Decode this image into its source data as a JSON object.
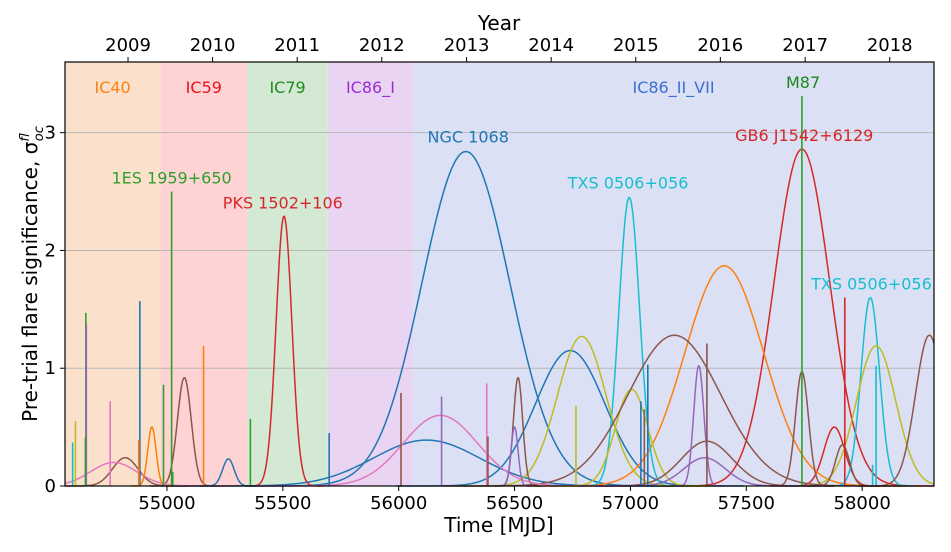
{
  "chart_data": {
    "type": "line",
    "xlabel": "Time [MJD]",
    "ylabel": "Pre-trial flare significance, σ",
    "ylabel_sup": "f",
    "ylabel_sub": "loc",
    "x2label": "Year",
    "xlim": [
      54560,
      58310
    ],
    "ylim": [
      0,
      3.6
    ],
    "grid": "horizontal",
    "xticks": [
      55000,
      55500,
      56000,
      56500,
      57000,
      57500,
      58000
    ],
    "yticks": [
      0,
      1,
      2,
      3
    ],
    "year_ticks": [
      {
        "label": "2009",
        "mjd": 54832
      },
      {
        "label": "2010",
        "mjd": 55197
      },
      {
        "label": "2011",
        "mjd": 55562
      },
      {
        "label": "2012",
        "mjd": 55927
      },
      {
        "label": "2013",
        "mjd": 56293
      },
      {
        "label": "2014",
        "mjd": 56658
      },
      {
        "label": "2015",
        "mjd": 57023
      },
      {
        "label": "2016",
        "mjd": 57388
      },
      {
        "label": "2017",
        "mjd": 57754
      },
      {
        "label": "2018",
        "mjd": 58119
      }
    ],
    "seasons": [
      {
        "name": "IC40",
        "start": 54560,
        "end": 54971,
        "color": "#fbe1cc",
        "label_color": "#ff7f0e"
      },
      {
        "name": "IC59",
        "start": 54971,
        "end": 55347,
        "color": "#ffd3d3",
        "label_color": "#e8141a"
      },
      {
        "name": "IC79",
        "start": 55347,
        "end": 55694,
        "color": "#d4e9d4",
        "label_color": "#1f8a1f"
      },
      {
        "name": "IC86_I",
        "start": 55694,
        "end": 56062,
        "color": "#e9d4f1",
        "label_color": "#9b2bd6"
      },
      {
        "name": "IC86_II_VII",
        "start": 56062,
        "end": 58310,
        "color": "#dce0f4",
        "label_color": "#3b6fd3"
      }
    ],
    "annotations": [
      {
        "text": "1ES 1959+650",
        "x": 55020,
        "y": 2.5,
        "color": "#2ca02c"
      },
      {
        "text": "PKS 1502+106",
        "x": 55500,
        "y": 2.29,
        "color": "#d62728"
      },
      {
        "text": "NGC 1068",
        "x": 56300,
        "y": 2.85,
        "color": "#1f77b4"
      },
      {
        "text": "TXS 0506+056",
        "x": 56990,
        "y": 2.46,
        "color": "#17becf"
      },
      {
        "text": "M87",
        "x": 57745,
        "y": 3.31,
        "color": "#188a18"
      },
      {
        "text": "GB6 J1542+6129",
        "x": 57750,
        "y": 2.86,
        "color": "#d62728"
      },
      {
        "text": "TXS 0506+056",
        "x": 58040,
        "y": 1.6,
        "color": "#17becf"
      }
    ],
    "series": [
      {
        "type": "gauss",
        "mu": 56290,
        "sigma": 190,
        "amp": 2.84,
        "color": "#1f77b4"
      },
      {
        "type": "gauss",
        "mu": 56120,
        "sigma": 230,
        "amp": 0.39,
        "color": "#1f77b4"
      },
      {
        "type": "gauss",
        "mu": 56740,
        "sigma": 150,
        "amp": 1.15,
        "color": "#1f77b4"
      },
      {
        "type": "gauss",
        "mu": 57740,
        "sigma": 120,
        "amp": 2.86,
        "color": "#d62728"
      },
      {
        "type": "gauss",
        "mu": 55505,
        "sigma": 34,
        "amp": 2.29,
        "color": "#d62728"
      },
      {
        "type": "gauss",
        "mu": 57880,
        "sigma": 45,
        "amp": 0.5,
        "color": "#d62728"
      },
      {
        "type": "gauss",
        "mu": 57405,
        "sigma": 170,
        "amp": 1.87,
        "color": "#ff7f0e"
      },
      {
        "type": "gauss",
        "mu": 56995,
        "sigma": 45,
        "amp": 2.45,
        "color": "#17becf"
      },
      {
        "type": "gauss",
        "mu": 58035,
        "sigma": 40,
        "amp": 1.6,
        "color": "#17becf"
      },
      {
        "type": "gauss",
        "mu": 56790,
        "sigma": 105,
        "amp": 1.27,
        "color": "#bcbd22"
      },
      {
        "type": "gauss",
        "mu": 57005,
        "sigma": 70,
        "amp": 0.82,
        "color": "#bcbd22"
      },
      {
        "type": "gauss",
        "mu": 58060,
        "sigma": 85,
        "amp": 1.19,
        "color": "#bcbd22"
      },
      {
        "type": "gauss",
        "mu": 57190,
        "sigma": 200,
        "amp": 1.28,
        "color": "#8c564b"
      },
      {
        "type": "gauss",
        "mu": 57330,
        "sigma": 110,
        "amp": 0.38,
        "color": "#8c564b"
      },
      {
        "type": "gauss",
        "mu": 57740,
        "sigma": 28,
        "amp": 0.97,
        "color": "#8c564b"
      },
      {
        "type": "gauss",
        "mu": 55075,
        "sigma": 30,
        "amp": 0.92,
        "color": "#8c564b"
      },
      {
        "type": "gauss",
        "mu": 54820,
        "sigma": 55,
        "amp": 0.24,
        "color": "#8c564b"
      },
      {
        "type": "gauss",
        "mu": 56515,
        "sigma": 20,
        "amp": 0.92,
        "color": "#8c564b"
      },
      {
        "type": "gauss",
        "mu": 58290,
        "sigma": 60,
        "amp": 1.28,
        "color": "#8c564b"
      },
      {
        "type": "gauss",
        "mu": 56180,
        "sigma": 160,
        "amp": 0.6,
        "color": "#e377c2"
      },
      {
        "type": "gauss",
        "mu": 54770,
        "sigma": 100,
        "amp": 0.2,
        "color": "#e377c2"
      },
      {
        "type": "gauss",
        "mu": 57320,
        "sigma": 90,
        "amp": 0.24,
        "color": "#9467bd"
      },
      {
        "type": "gauss",
        "mu": 57295,
        "sigma": 22,
        "amp": 1.02,
        "color": "#9467bd"
      },
      {
        "type": "gauss",
        "mu": 56500,
        "sigma": 15,
        "amp": 0.5,
        "color": "#9467bd"
      },
      {
        "type": "gauss",
        "mu": 55265,
        "sigma": 25,
        "amp": 0.23,
        "color": "#1f77b4"
      },
      {
        "type": "gauss",
        "mu": 54935,
        "sigma": 18,
        "amp": 0.5,
        "color": "#ff7f0e"
      },
      {
        "type": "gauss",
        "mu": 57915,
        "sigma": 30,
        "amp": 0.35,
        "color": "#8c564b"
      },
      {
        "type": "spike",
        "x": 55020,
        "h": 2.5,
        "color": "#2ca02c"
      },
      {
        "type": "spike",
        "x": 57740,
        "h": 3.31,
        "color": "#2ca02c"
      },
      {
        "type": "spike",
        "x": 54883,
        "h": 1.57,
        "color": "#1f77b4"
      },
      {
        "type": "spike",
        "x": 54650,
        "h": 1.47,
        "color": "#2ca02c"
      },
      {
        "type": "spike",
        "x": 54652,
        "h": 1.37,
        "color": "#9467bd"
      },
      {
        "type": "spike",
        "x": 55158,
        "h": 1.19,
        "color": "#ff7f0e"
      },
      {
        "type": "spike",
        "x": 54985,
        "h": 0.86,
        "color": "#2ca02c"
      },
      {
        "type": "spike",
        "x": 54755,
        "h": 0.72,
        "color": "#e377c2"
      },
      {
        "type": "spike",
        "x": 54605,
        "h": 0.55,
        "color": "#bcbd22"
      },
      {
        "type": "spike",
        "x": 54593,
        "h": 0.37,
        "color": "#17becf"
      },
      {
        "type": "spike",
        "x": 54648,
        "h": 0.41,
        "color": "#2ca02c"
      },
      {
        "type": "spike",
        "x": 54878,
        "h": 0.39,
        "color": "#ff7f0e"
      },
      {
        "type": "spike",
        "x": 55025,
        "h": 0.12,
        "color": "#2ca02c"
      },
      {
        "type": "spike",
        "x": 55360,
        "h": 0.57,
        "color": "#2ca02c"
      },
      {
        "type": "spike",
        "x": 55700,
        "h": 0.45,
        "color": "#1f77b4"
      },
      {
        "type": "spike",
        "x": 56010,
        "h": 0.79,
        "color": "#8c564b"
      },
      {
        "type": "spike",
        "x": 56185,
        "h": 0.76,
        "color": "#9467bd"
      },
      {
        "type": "spike",
        "x": 56380,
        "h": 0.87,
        "color": "#e377c2"
      },
      {
        "type": "spike",
        "x": 56385,
        "h": 0.42,
        "color": "#8c564b"
      },
      {
        "type": "spike",
        "x": 56765,
        "h": 0.68,
        "color": "#bcbd22"
      },
      {
        "type": "spike",
        "x": 57045,
        "h": 0.72,
        "color": "#1f77b4"
      },
      {
        "type": "spike",
        "x": 57075,
        "h": 1.03,
        "color": "#1f77b4"
      },
      {
        "type": "spike",
        "x": 57060,
        "h": 0.65,
        "color": "#8c564b"
      },
      {
        "type": "spike",
        "x": 57330,
        "h": 1.21,
        "color": "#8c564b"
      },
      {
        "type": "spike",
        "x": 57925,
        "h": 1.6,
        "color": "#d62728"
      },
      {
        "type": "spike",
        "x": 58060,
        "h": 1.02,
        "color": "#17becf"
      },
      {
        "type": "spike",
        "x": 58045,
        "h": 0.18,
        "color": "#17becf"
      }
    ]
  }
}
